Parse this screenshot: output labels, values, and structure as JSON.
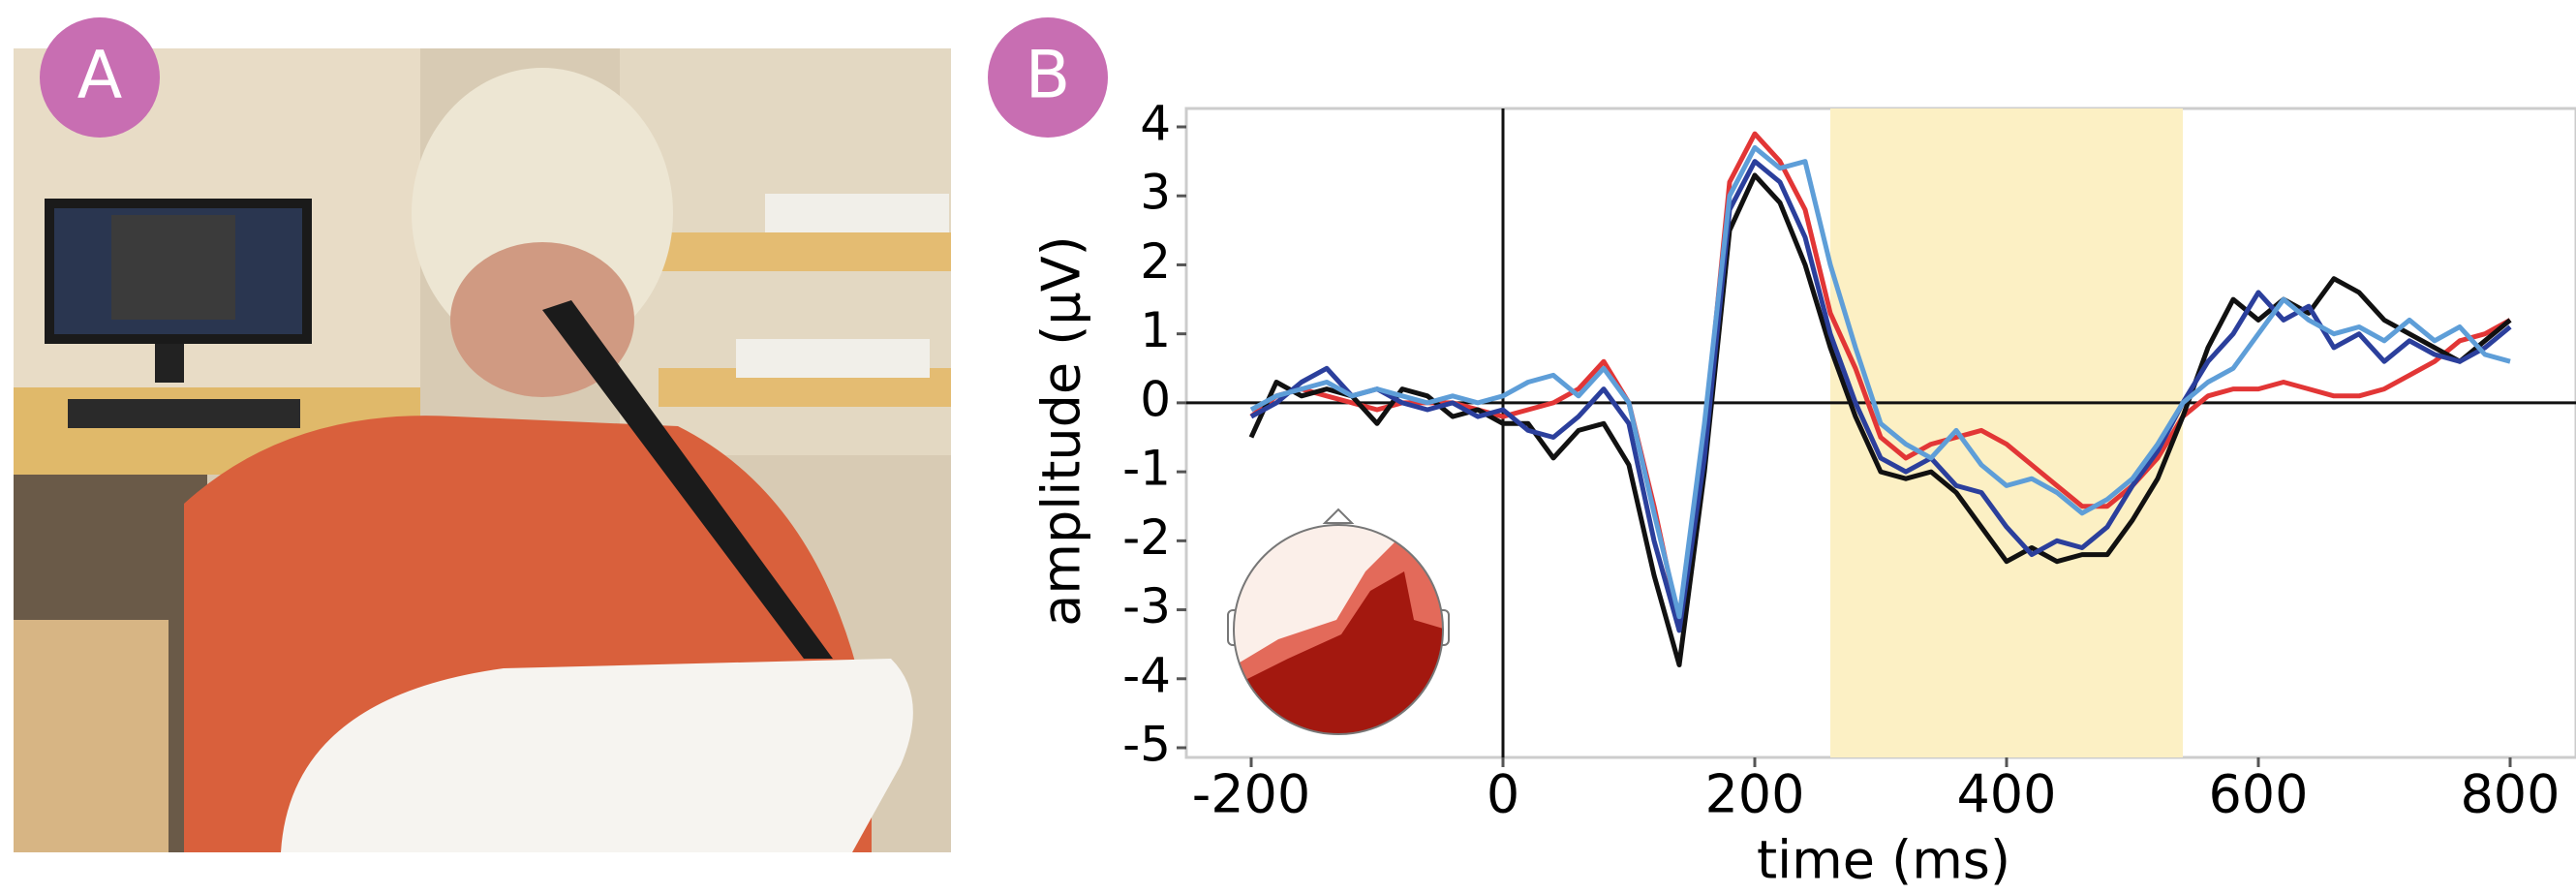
{
  "panel_labels": [
    "A",
    "B"
  ],
  "chart_data": {
    "type": "line",
    "xlabel": "time (ms)",
    "ylabel": "amplitude (μV)",
    "xlim": [
      -200,
      800
    ],
    "ylim": [
      -5,
      4
    ],
    "xticks": [
      -200,
      0,
      200,
      400,
      600,
      800
    ],
    "yticks": [
      -5,
      -4,
      -3,
      -2,
      -1,
      0,
      1,
      2,
      3,
      4
    ],
    "highlight": {
      "range": [
        260,
        540
      ],
      "color": "#fcf0c4"
    },
    "x": [
      -200,
      -180,
      -160,
      -140,
      -120,
      -100,
      -80,
      -60,
      -40,
      -20,
      0,
      20,
      40,
      60,
      80,
      100,
      120,
      140,
      160,
      180,
      200,
      220,
      240,
      260,
      280,
      300,
      320,
      340,
      360,
      380,
      400,
      420,
      440,
      460,
      480,
      500,
      520,
      540,
      560,
      580,
      600,
      620,
      640,
      660,
      680,
      700,
      720,
      740,
      760,
      780,
      800
    ],
    "series": [
      {
        "color": "#e23636",
        "values": [
          -0.2,
          0.1,
          0.2,
          0.1,
          0.0,
          -0.1,
          0.0,
          0.0,
          0.0,
          -0.1,
          -0.2,
          -0.1,
          0.0,
          0.2,
          0.6,
          0.0,
          -1.5,
          -3.2,
          -0.5,
          3.2,
          3.9,
          3.5,
          2.8,
          1.3,
          0.5,
          -0.5,
          -0.8,
          -0.6,
          -0.5,
          -0.4,
          -0.6,
          -0.9,
          -1.2,
          -1.5,
          -1.5,
          -1.2,
          -0.8,
          -0.2,
          0.1,
          0.2,
          0.2,
          0.3,
          0.2,
          0.1,
          0.1,
          0.2,
          0.4,
          0.6,
          0.9,
          1.0,
          1.2
        ]
      },
      {
        "color": "#111111",
        "values": [
          -0.5,
          0.3,
          0.1,
          0.2,
          0.1,
          -0.3,
          0.2,
          0.1,
          -0.2,
          -0.1,
          -0.3,
          -0.3,
          -0.8,
          -0.4,
          -0.3,
          -0.9,
          -2.5,
          -3.8,
          -1.0,
          2.5,
          3.3,
          2.9,
          2.0,
          0.8,
          -0.2,
          -1.0,
          -1.1,
          -1.0,
          -1.3,
          -1.8,
          -2.3,
          -2.1,
          -2.3,
          -2.2,
          -2.2,
          -1.7,
          -1.1,
          -0.2,
          0.8,
          1.5,
          1.2,
          1.5,
          1.3,
          1.8,
          1.6,
          1.2,
          1.0,
          0.8,
          0.6,
          0.9,
          1.2
        ]
      },
      {
        "color": "#2b3f9c",
        "values": [
          -0.2,
          0.0,
          0.3,
          0.5,
          0.1,
          0.2,
          0.0,
          -0.1,
          0.0,
          -0.2,
          -0.1,
          -0.4,
          -0.5,
          -0.2,
          0.2,
          -0.3,
          -2.0,
          -3.3,
          -0.8,
          2.8,
          3.5,
          3.2,
          2.4,
          1.0,
          0.0,
          -0.8,
          -1.0,
          -0.8,
          -1.2,
          -1.3,
          -1.8,
          -2.2,
          -2.0,
          -2.1,
          -1.8,
          -1.2,
          -0.7,
          0.0,
          0.6,
          1.0,
          1.6,
          1.2,
          1.4,
          0.8,
          1.0,
          0.6,
          0.9,
          0.7,
          0.6,
          0.8,
          1.1
        ]
      },
      {
        "color": "#5e9ed8",
        "values": [
          -0.1,
          0.1,
          0.2,
          0.3,
          0.1,
          0.2,
          0.1,
          0.0,
          0.1,
          0.0,
          0.1,
          0.3,
          0.4,
          0.1,
          0.5,
          0.0,
          -1.6,
          -3.1,
          -0.3,
          3.0,
          3.7,
          3.4,
          3.5,
          2.0,
          0.8,
          -0.3,
          -0.6,
          -0.8,
          -0.4,
          -0.9,
          -1.2,
          -1.1,
          -1.3,
          -1.6,
          -1.4,
          -1.1,
          -0.6,
          0.0,
          0.3,
          0.5,
          1.0,
          1.5,
          1.2,
          1.0,
          1.1,
          0.9,
          1.2,
          0.9,
          1.1,
          0.7,
          0.6
        ]
      }
    ]
  }
}
